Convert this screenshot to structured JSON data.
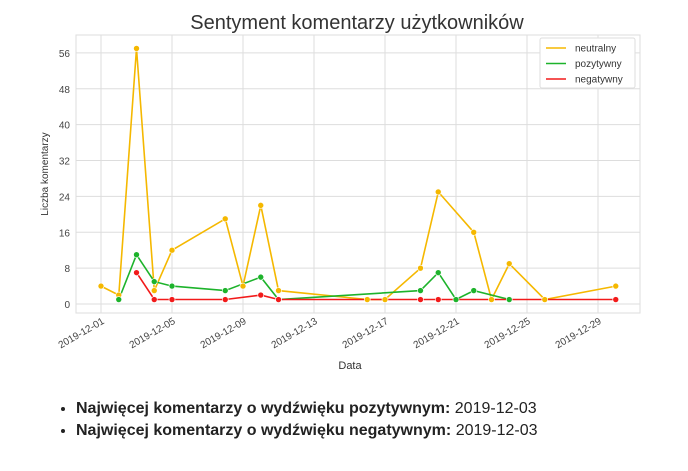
{
  "chart_data": {
    "type": "line",
    "title": "Sentyment komentarzy użytkowników",
    "xlabel": "Data",
    "ylabel": "Liczba komentarzy",
    "ylim": [
      -2,
      60
    ],
    "yticks": [
      0,
      8,
      16,
      24,
      32,
      40,
      48,
      56
    ],
    "xticks": [
      "2019-12-01",
      "2019-12-05",
      "2019-12-09",
      "2019-12-13",
      "2019-12-17",
      "2019-12-21",
      "2019-12-25",
      "2019-12-29"
    ],
    "xlim": [
      "2019-11-28",
      "2019-12-31"
    ],
    "grid": true,
    "legend_position": "top-right",
    "series": [
      {
        "name": "neutralny",
        "color": "#f5b800",
        "x": [
          "2019-12-01",
          "2019-12-02",
          "2019-12-03",
          "2019-12-04",
          "2019-12-05",
          "2019-12-08",
          "2019-12-09",
          "2019-12-10",
          "2019-12-11",
          "2019-12-16",
          "2019-12-17",
          "2019-12-19",
          "2019-12-20",
          "2019-12-22",
          "2019-12-23",
          "2019-12-24",
          "2019-12-26",
          "2019-12-30"
        ],
        "values": [
          4,
          2,
          57,
          3,
          12,
          19,
          4,
          22,
          3,
          1,
          1,
          8,
          25,
          16,
          1,
          9,
          1,
          4
        ]
      },
      {
        "name": "pozytywny",
        "color": "#1db32b",
        "x": [
          "2019-12-02",
          "2019-12-03",
          "2019-12-04",
          "2019-12-05",
          "2019-12-08",
          "2019-12-10",
          "2019-12-11",
          "2019-12-19",
          "2019-12-20",
          "2019-12-21",
          "2019-12-22",
          "2019-12-24"
        ],
        "values": [
          1,
          11,
          5,
          4,
          3,
          6,
          1,
          3,
          7,
          1,
          3,
          1
        ]
      },
      {
        "name": "negatywny",
        "color": "#f21a1a",
        "x": [
          "2019-12-03",
          "2019-12-04",
          "2019-12-05",
          "2019-12-08",
          "2019-12-10",
          "2019-12-11",
          "2019-12-19",
          "2019-12-20",
          "2019-12-30"
        ],
        "values": [
          7,
          1,
          1,
          1,
          2,
          1,
          1,
          1,
          1
        ]
      }
    ]
  },
  "summary": [
    {
      "label": "Najwięcej komentarzy o wydźwięku pozytywnym:",
      "value": "2019-12-03"
    },
    {
      "label": "Najwięcej komentarzy o wydźwięku negatywnym:",
      "value": "2019-12-03"
    }
  ]
}
